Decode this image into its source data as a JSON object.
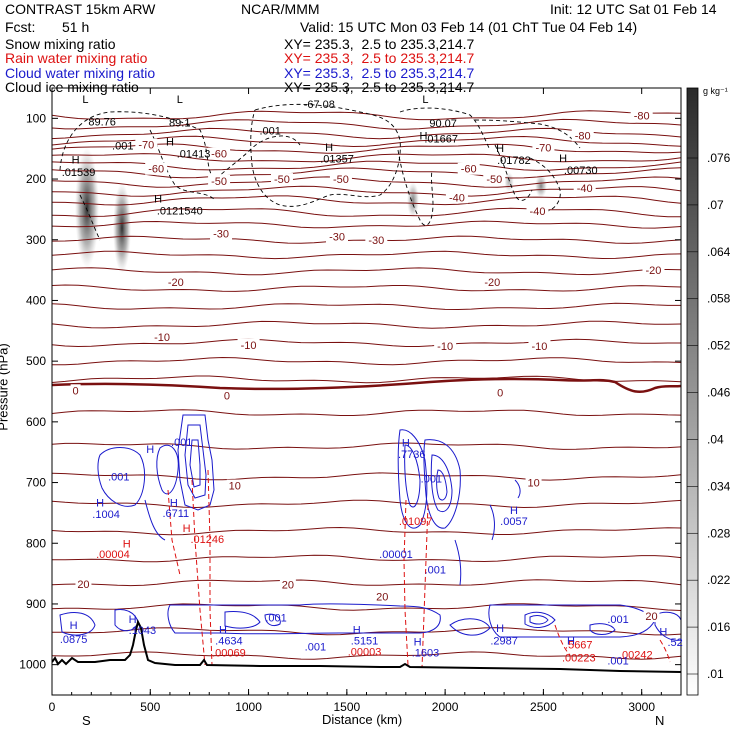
{
  "header": {
    "model": "CONTRAST 15km ARW",
    "org": "NCAR/MMM",
    "init": "Init: 12 UTC Sat 01 Feb 14",
    "fcst_label": "Fcst:",
    "fcst_value": "51 h",
    "valid": "Valid: 15 UTC Mon 03 Feb 14 (01 ChT Tue 04 Feb 14)",
    "rows": [
      {
        "label": "Snow mixing ratio",
        "xy": "XY= 235.3,  2.5 to 235.3,214.7",
        "color": "#000000"
      },
      {
        "label": "Rain water mixing ratio",
        "xy": "XY= 235.3,  2.5 to 235.3,214.7",
        "color": "#dd1111"
      },
      {
        "label": "Cloud water mixing ratio",
        "xy": "XY= 235.3,  2.5 to 235.3,214.7",
        "color": "#1a1acc"
      },
      {
        "label": "Cloud ice mixing ratio",
        "xy": "XY= 235.3,  2.5 to 235.3,214.7",
        "color": "#000000"
      }
    ]
  },
  "chart_data": {
    "type": "cross-section contour",
    "xlabel": "Distance (km)",
    "ylabel": "Pressure (hPa)",
    "xlim": [
      0,
      3200
    ],
    "ylim": [
      1050,
      50
    ],
    "x_ticks": [
      0,
      500,
      1000,
      1500,
      2000,
      2500,
      3000
    ],
    "y_ticks": [
      100,
      200,
      300,
      400,
      500,
      600,
      700,
      800,
      900,
      1000
    ],
    "x_end_labels": {
      "left": "S",
      "right": "N"
    },
    "colorbar": {
      "unit": "g kg⁻¹",
      "ticks": [
        ".076",
        ".07",
        ".064",
        ".058",
        ".052",
        ".046",
        ".04",
        ".034",
        ".028",
        ".022",
        ".016",
        ".01"
      ]
    },
    "colors": {
      "temperature": "#7a1010",
      "cloud_water": "#1a1acc",
      "rain_water": "#dd1111",
      "terrain": "#000000"
    },
    "temperature_labels": [
      {
        "text": "-80",
        "x": 3000,
        "p": 95
      },
      {
        "text": "-80",
        "x": 2700,
        "p": 128
      },
      {
        "text": "-70",
        "x": 2500,
        "p": 148
      },
      {
        "text": "-70",
        "x": 480,
        "p": 143
      },
      {
        "text": "-60",
        "x": 850,
        "p": 158
      },
      {
        "text": "-60",
        "x": 530,
        "p": 183
      },
      {
        "text": "-60",
        "x": 2120,
        "p": 183
      },
      {
        "text": "-50",
        "x": 850,
        "p": 203
      },
      {
        "text": "-50",
        "x": 1170,
        "p": 200
      },
      {
        "text": "-50",
        "x": 1470,
        "p": 200
      },
      {
        "text": "-50",
        "x": 2250,
        "p": 200
      },
      {
        "text": "-40",
        "x": 2060,
        "p": 230
      },
      {
        "text": "-40",
        "x": 2470,
        "p": 253
      },
      {
        "text": "-40",
        "x": 2710,
        "p": 215
      },
      {
        "text": "-30",
        "x": 860,
        "p": 290
      },
      {
        "text": "-30",
        "x": 1450,
        "p": 295
      },
      {
        "text": "-30",
        "x": 1650,
        "p": 300
      },
      {
        "text": "-20",
        "x": 630,
        "p": 370
      },
      {
        "text": "-20",
        "x": 2240,
        "p": 370
      },
      {
        "text": "-20",
        "x": 3060,
        "p": 350
      },
      {
        "text": "-10",
        "x": 560,
        "p": 460
      },
      {
        "text": "-10",
        "x": 1000,
        "p": 473
      },
      {
        "text": "-10",
        "x": 2000,
        "p": 475
      },
      {
        "text": "-10",
        "x": 2480,
        "p": 475
      },
      {
        "text": "0",
        "x": 120,
        "p": 548
      },
      {
        "text": "0",
        "x": 890,
        "p": 557
      },
      {
        "text": "0",
        "x": 2280,
        "p": 552
      },
      {
        "text": "10",
        "x": 930,
        "p": 705
      },
      {
        "text": "10",
        "x": 2450,
        "p": 700
      },
      {
        "text": "20",
        "x": 160,
        "p": 867
      },
      {
        "text": "20",
        "x": 1200,
        "p": 868
      },
      {
        "text": "20",
        "x": 1680,
        "p": 888
      },
      {
        "text": "20",
        "x": 3050,
        "p": 920
      }
    ],
    "maxima_labels": [
      {
        "text": "H",
        "x": 120,
        "p": 168,
        "color": "black"
      },
      {
        "text": ".01539",
        "x": 135,
        "p": 188,
        "color": "black"
      },
      {
        "text": "L",
        "x": 170,
        "p": 68,
        "color": "black"
      },
      {
        "text": "89.76",
        "x": 255,
        "p": 105,
        "color": "black"
      },
      {
        "text": "L",
        "x": 650,
        "p": 68,
        "color": "black"
      },
      {
        "text": "89.1",
        "x": 650,
        "p": 107,
        "color": "black"
      },
      {
        "text": ".001",
        "x": 360,
        "p": 145,
        "color": "black"
      },
      {
        "text": "H",
        "x": 600,
        "p": 138,
        "color": "black"
      },
      {
        "text": ".01413",
        "x": 720,
        "p": 158,
        "color": "black"
      },
      {
        "text": "H",
        "x": 540,
        "p": 232,
        "color": "black"
      },
      {
        "text": ".0121540",
        "x": 650,
        "p": 252,
        "color": "black"
      },
      {
        "text": ".001",
        "x": 1110,
        "p": 120,
        "color": "black"
      },
      {
        "text": "-67.08",
        "x": 1360,
        "p": 76,
        "color": "black"
      },
      {
        "text": "H",
        "x": 1410,
        "p": 147,
        "color": "black"
      },
      {
        "text": ".01357",
        "x": 1450,
        "p": 166,
        "color": "black"
      },
      {
        "text": "L",
        "x": 1900,
        "p": 68,
        "color": "black"
      },
      {
        "text": "90.07",
        "x": 1990,
        "p": 108,
        "color": "black"
      },
      {
        "text": "H",
        "x": 1890,
        "p": 128,
        "color": "black"
      },
      {
        "text": ".01667",
        "x": 1980,
        "p": 133,
        "color": "black"
      },
      {
        "text": "H",
        "x": 2280,
        "p": 149,
        "color": "black"
      },
      {
        "text": ".01782",
        "x": 2350,
        "p": 169,
        "color": "black"
      },
      {
        "text": "H",
        "x": 2600,
        "p": 165,
        "color": "black"
      },
      {
        "text": ".00730",
        "x": 2690,
        "p": 185,
        "color": "black"
      },
      {
        "text": "H",
        "x": 500,
        "p": 645,
        "color": "blue"
      },
      {
        "text": ".001",
        "x": 660,
        "p": 633,
        "color": "blue"
      },
      {
        "text": ".001",
        "x": 340,
        "p": 690,
        "color": "blue"
      },
      {
        "text": "H",
        "x": 245,
        "p": 733,
        "color": "blue"
      },
      {
        "text": ".1004",
        "x": 275,
        "p": 752,
        "color": "blue"
      },
      {
        "text": "H",
        "x": 620,
        "p": 733,
        "color": "blue"
      },
      {
        "text": ".6711",
        "x": 630,
        "p": 750,
        "color": "blue"
      },
      {
        "text": "H",
        "x": 685,
        "p": 775,
        "color": "red"
      },
      {
        "text": ".01246",
        "x": 790,
        "p": 793,
        "color": "red"
      },
      {
        "text": "H",
        "x": 380,
        "p": 800,
        "color": "red"
      },
      {
        "text": ".00004",
        "x": 310,
        "p": 818,
        "color": "red"
      },
      {
        "text": "H",
        "x": 1800,
        "p": 634,
        "color": "blue"
      },
      {
        "text": ".7736",
        "x": 1830,
        "p": 653,
        "color": "blue"
      },
      {
        "text": ".001",
        "x": 1930,
        "p": 693,
        "color": "blue"
      },
      {
        "text": ".01097",
        "x": 1850,
        "p": 763,
        "color": "red"
      },
      {
        "text": ".00001",
        "x": 1750,
        "p": 818,
        "color": "blue"
      },
      {
        "text": "H",
        "x": 2350,
        "p": 745,
        "color": "blue"
      },
      {
        "text": ".0057",
        "x": 2350,
        "p": 763,
        "color": "blue"
      },
      {
        "text": ".001",
        "x": 1950,
        "p": 843,
        "color": "blue"
      },
      {
        "text": "H",
        "x": 110,
        "p": 935,
        "color": "blue"
      },
      {
        "text": ".0875",
        "x": 110,
        "p": 958,
        "color": "blue"
      },
      {
        "text": "H",
        "x": 410,
        "p": 925,
        "color": "blue"
      },
      {
        "text": ".1043",
        "x": 460,
        "p": 943,
        "color": "blue"
      },
      {
        "text": "H",
        "x": 870,
        "p": 942,
        "color": "blue"
      },
      {
        "text": ".4634",
        "x": 900,
        "p": 960,
        "color": "blue"
      },
      {
        "text": ".00069",
        "x": 900,
        "p": 980,
        "color": "red"
      },
      {
        "text": ".001",
        "x": 1140,
        "p": 922,
        "color": "blue"
      },
      {
        "text": ".001",
        "x": 1340,
        "p": 970,
        "color": "blue"
      },
      {
        "text": "H",
        "x": 1550,
        "p": 942,
        "color": "blue"
      },
      {
        "text": ".5151",
        "x": 1590,
        "p": 960,
        "color": "blue"
      },
      {
        "text": ".00003",
        "x": 1590,
        "p": 978,
        "color": "red"
      },
      {
        "text": "H",
        "x": 1860,
        "p": 962,
        "color": "blue"
      },
      {
        "text": ".1603",
        "x": 1900,
        "p": 980,
        "color": "blue"
      },
      {
        "text": "H",
        "x": 2280,
        "p": 940,
        "color": "blue"
      },
      {
        "text": ".2987",
        "x": 2300,
        "p": 960,
        "color": "blue"
      },
      {
        "text": "H",
        "x": 2640,
        "p": 960,
        "color": "blue"
      },
      {
        "text": ".5667",
        "x": 2680,
        "p": 967,
        "color": "red"
      },
      {
        "text": ".00223",
        "x": 2680,
        "p": 988,
        "color": "red"
      },
      {
        "text": ".001",
        "x": 2880,
        "p": 925,
        "color": "blue"
      },
      {
        "text": ".00242",
        "x": 2970,
        "p": 983,
        "color": "red"
      },
      {
        "text": ".001",
        "x": 2880,
        "p": 993,
        "color": "blue"
      },
      {
        "text": "H",
        "x": 3110,
        "p": 945,
        "color": "blue"
      },
      {
        "text": ".52",
        "x": 3170,
        "p": 963,
        "color": "blue"
      }
    ]
  }
}
